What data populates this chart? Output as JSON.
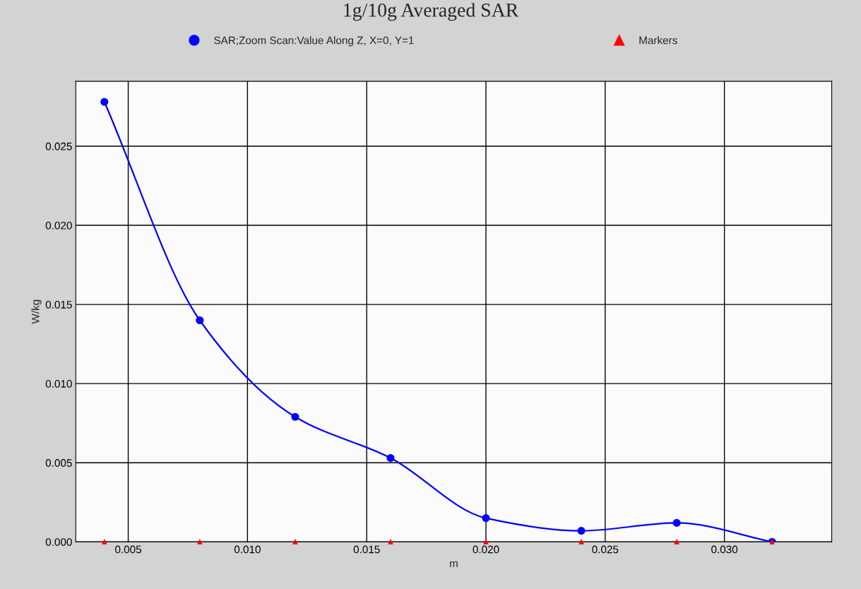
{
  "chart_data": {
    "type": "line",
    "title": "1g/10g Averaged SAR",
    "xlabel": "m",
    "ylabel": "W/kg",
    "series": [
      {
        "name": "SAR;Zoom Scan:Value Along Z, X=0, Y=1",
        "color": "#0000ff",
        "type": "line",
        "marker": "circle",
        "x": [
          0.004,
          0.008,
          0.012,
          0.016,
          0.02,
          0.024,
          0.028,
          0.032
        ],
        "values": [
          0.0278,
          0.014,
          0.0079,
          0.0053,
          0.0015,
          0.0007,
          0.0012,
          0.0
        ]
      },
      {
        "name": "Markers",
        "color": "#ff0000",
        "type": "scatter",
        "marker": "triangle",
        "x": [
          0.004,
          0.008,
          0.012,
          0.016,
          0.02,
          0.024,
          0.028,
          0.032
        ],
        "values": [
          0,
          0,
          0,
          0,
          0,
          0,
          0,
          0
        ]
      }
    ],
    "xlim": [
      0.0028,
      0.0345
    ],
    "xticks": [
      {
        "value": 0.005,
        "label": "0.005"
      },
      {
        "value": 0.01,
        "label": "0.010"
      },
      {
        "value": 0.015,
        "label": "0.015"
      },
      {
        "value": 0.02,
        "label": "0.020"
      },
      {
        "value": 0.025,
        "label": "0.025"
      },
      {
        "value": 0.03,
        "label": "0.030"
      }
    ],
    "ylim": [
      0.0,
      0.0291
    ],
    "yticks": [
      {
        "value": 0.0,
        "label": "0.000"
      },
      {
        "value": 0.005,
        "label": "0.005"
      },
      {
        "value": 0.01,
        "label": "0.010"
      },
      {
        "value": 0.015,
        "label": "0.015"
      },
      {
        "value": 0.02,
        "label": "0.020"
      },
      {
        "value": 0.025,
        "label": "0.025"
      }
    ],
    "grid": true,
    "legend": "top"
  }
}
